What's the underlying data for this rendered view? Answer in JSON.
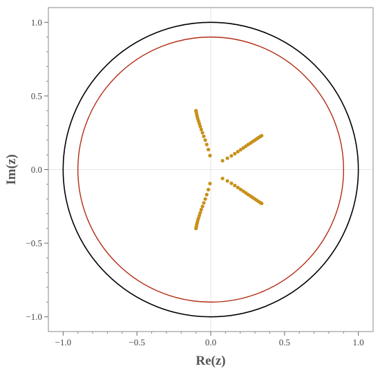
{
  "chart_data": {
    "type": "scatter",
    "title": "",
    "xlabel": "Re(z)",
    "ylabel": "Im(z)",
    "xlim": [
      -1.1,
      1.1
    ],
    "ylim": [
      -1.1,
      1.1
    ],
    "xticks": [
      -1.0,
      -0.5,
      0.0,
      0.5,
      1.0
    ],
    "xtick_labels": [
      "−1.0",
      "−0.5",
      "0.0",
      "0.5",
      "1.0"
    ],
    "yticks": [
      1.0,
      0.5,
      0.0,
      -0.5,
      -1.0
    ],
    "ytick_labels": [
      "1.0",
      "0.5",
      "0.0",
      "−0.5",
      "−1.0"
    ],
    "grid": "zero-lines",
    "legend": "none",
    "curves": [
      {
        "kind": "circle",
        "center": [
          0,
          0
        ],
        "radius": 1.0,
        "color": "#000000"
      },
      {
        "kind": "circle",
        "center": [
          0,
          0
        ],
        "radius": 0.9,
        "color": "#b22a12"
      }
    ],
    "points_color": "#c8901a",
    "points": [
      [
        -0.1,
        0.4
      ],
      [
        -0.098,
        0.39
      ],
      [
        -0.095,
        0.376
      ],
      [
        -0.092,
        0.362
      ],
      [
        -0.088,
        0.346
      ],
      [
        -0.083,
        0.33
      ],
      [
        -0.077,
        0.312
      ],
      [
        -0.071,
        0.293
      ],
      [
        -0.064,
        0.272
      ],
      [
        -0.056,
        0.25
      ],
      [
        -0.047,
        0.226
      ],
      [
        -0.037,
        0.2
      ],
      [
        -0.027,
        0.17
      ],
      [
        -0.016,
        0.136
      ],
      [
        -0.005,
        0.095
      ],
      [
        -0.1,
        -0.4
      ],
      [
        -0.098,
        -0.39
      ],
      [
        -0.095,
        -0.376
      ],
      [
        -0.092,
        -0.362
      ],
      [
        -0.088,
        -0.346
      ],
      [
        -0.083,
        -0.33
      ],
      [
        -0.077,
        -0.312
      ],
      [
        -0.071,
        -0.293
      ],
      [
        -0.064,
        -0.272
      ],
      [
        -0.056,
        -0.25
      ],
      [
        -0.047,
        -0.226
      ],
      [
        -0.037,
        -0.2
      ],
      [
        -0.027,
        -0.17
      ],
      [
        -0.016,
        -0.136
      ],
      [
        -0.005,
        -0.095
      ],
      [
        0.345,
        0.23
      ],
      [
        0.335,
        0.224
      ],
      [
        0.323,
        0.216
      ],
      [
        0.311,
        0.208
      ],
      [
        0.298,
        0.199
      ],
      [
        0.284,
        0.19
      ],
      [
        0.27,
        0.18
      ],
      [
        0.254,
        0.17
      ],
      [
        0.238,
        0.159
      ],
      [
        0.221,
        0.147
      ],
      [
        0.203,
        0.135
      ],
      [
        0.184,
        0.122
      ],
      [
        0.163,
        0.108
      ],
      [
        0.14,
        0.093
      ],
      [
        0.113,
        0.077
      ],
      [
        0.08,
        0.06
      ],
      [
        0.345,
        -0.23
      ],
      [
        0.335,
        -0.224
      ],
      [
        0.323,
        -0.216
      ],
      [
        0.311,
        -0.208
      ],
      [
        0.298,
        -0.199
      ],
      [
        0.284,
        -0.19
      ],
      [
        0.27,
        -0.18
      ],
      [
        0.254,
        -0.17
      ],
      [
        0.238,
        -0.159
      ],
      [
        0.221,
        -0.147
      ],
      [
        0.203,
        -0.135
      ],
      [
        0.184,
        -0.122
      ],
      [
        0.163,
        -0.108
      ],
      [
        0.14,
        -0.093
      ],
      [
        0.113,
        -0.077
      ],
      [
        0.08,
        -0.06
      ]
    ]
  }
}
